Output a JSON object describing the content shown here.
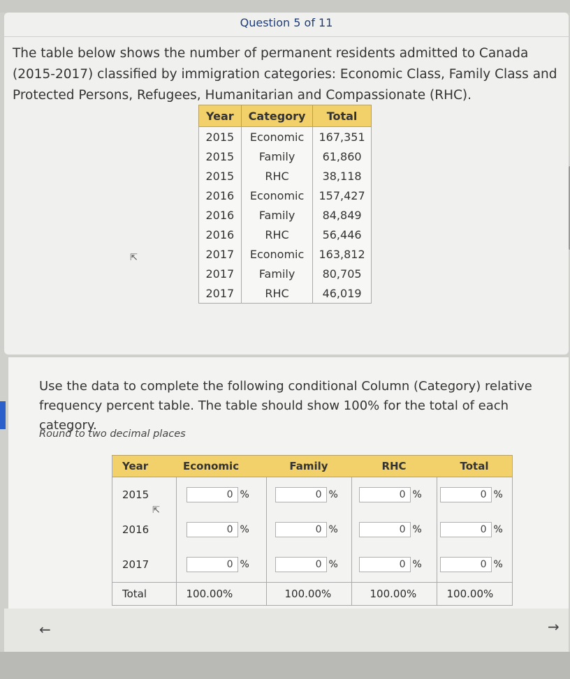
{
  "header": {
    "question_progress": "Question 5 of 11"
  },
  "prompt": {
    "intro": "The table below shows the number of permanent residents admitted to Canada (2015-2017) classified by immigration categories: Economic Class, Family Class and Protected Persons, Refugees, Humanitarian and Compassionate (RHC).",
    "instruction": "Use the data to complete the following conditional Column (Category) relative frequency percent table. The table should show 100% for the total of each category.",
    "round_note": "Round to two decimal places"
  },
  "data_table": {
    "headers": [
      "Year",
      "Category",
      "Total"
    ],
    "rows": [
      [
        "2015",
        "Economic",
        "167,351"
      ],
      [
        "2015",
        "Family",
        "61,860"
      ],
      [
        "2015",
        "RHC",
        "38,118"
      ],
      [
        "2016",
        "Economic",
        "157,427"
      ],
      [
        "2016",
        "Family",
        "84,849"
      ],
      [
        "2016",
        "RHC",
        "56,446"
      ],
      [
        "2017",
        "Economic",
        "163,812"
      ],
      [
        "2017",
        "Family",
        "80,705"
      ],
      [
        "2017",
        "RHC",
        "46,019"
      ]
    ]
  },
  "answer_table": {
    "headers": [
      "Year",
      "Economic",
      "Family",
      "RHC",
      "Total"
    ],
    "rows": [
      {
        "year": "2015",
        "inputs": [
          "0",
          "0",
          "0",
          "0"
        ]
      },
      {
        "year": "2016",
        "inputs": [
          "0",
          "0",
          "0",
          "0"
        ]
      },
      {
        "year": "2017",
        "inputs": [
          "0",
          "0",
          "0",
          "0"
        ]
      }
    ],
    "percent_sign": "%",
    "total_row": {
      "label": "Total",
      "values": [
        "100.00%",
        "100.00%",
        "100.00%",
        "100.00%"
      ]
    }
  },
  "nav": {
    "back_icon": "arrow-left-icon",
    "next_icon": "arrow-right-icon",
    "back_glyph": "←",
    "next_glyph": "→"
  },
  "colors": {
    "header_fill": "#f2d06a",
    "accent_blue": "#1d3d7a"
  }
}
